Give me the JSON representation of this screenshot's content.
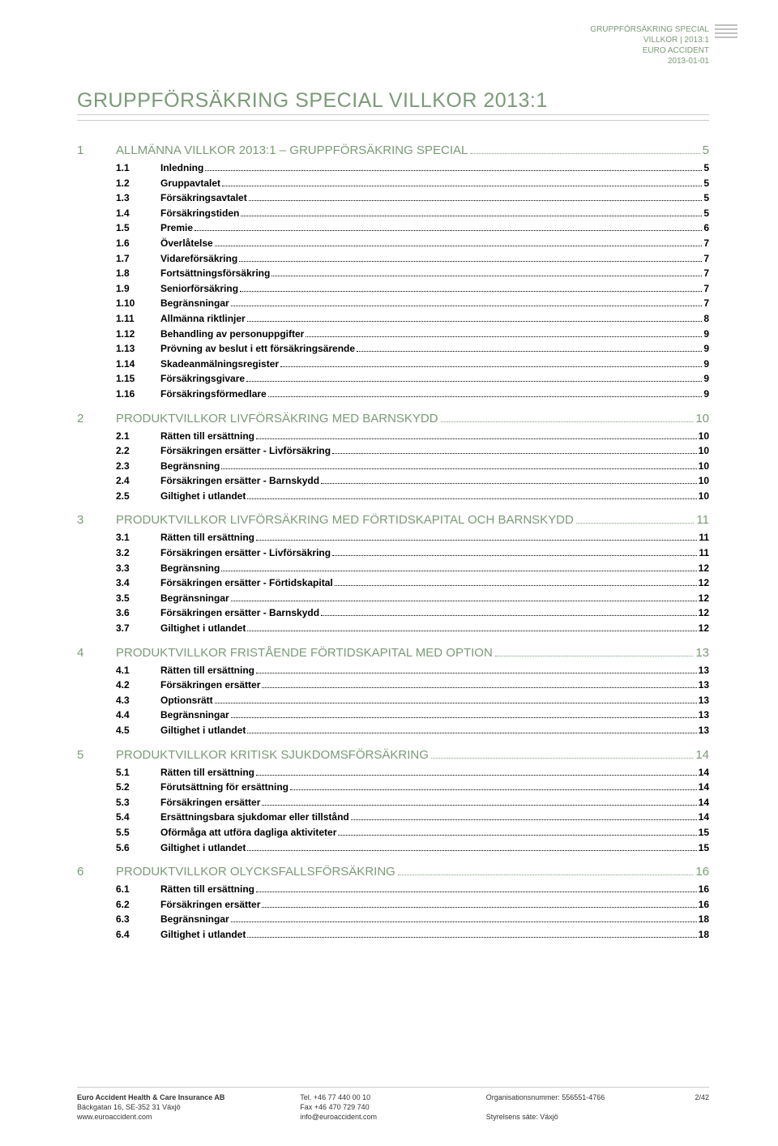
{
  "header": {
    "line1": "GRUPPFÖRSÄKRING SPECIAL",
    "line2": "VILLKOR | 2013:1",
    "line3": "EURO ACCIDENT",
    "line4": "2013-01-01"
  },
  "main_title": "GRUPPFÖRSÄKRING SPECIAL VILLKOR 2013:1",
  "toc": [
    {
      "num": "1",
      "title": "ALLMÄNNA VILLKOR 2013:1 – GRUPPFÖRSÄKRING SPECIAL",
      "page": "5",
      "subs": [
        {
          "num": "1.1",
          "title": "Inledning",
          "page": "5"
        },
        {
          "num": "1.2",
          "title": "Gruppavtalet",
          "page": "5"
        },
        {
          "num": "1.3",
          "title": "Försäkringsavtalet",
          "page": "5"
        },
        {
          "num": "1.4",
          "title": "Försäkringstiden",
          "page": "5"
        },
        {
          "num": "1.5",
          "title": "Premie",
          "page": "6"
        },
        {
          "num": "1.6",
          "title": "Överlåtelse",
          "page": "7"
        },
        {
          "num": "1.7",
          "title": "Vidareförsäkring",
          "page": "7"
        },
        {
          "num": "1.8",
          "title": "Fortsättningsförsäkring",
          "page": "7"
        },
        {
          "num": "1.9",
          "title": "Seniorförsäkring",
          "page": "7"
        },
        {
          "num": "1.10",
          "title": "Begränsningar",
          "page": "7"
        },
        {
          "num": "1.11",
          "title": "Allmänna riktlinjer",
          "page": "8"
        },
        {
          "num": "1.12",
          "title": "Behandling av personuppgifter",
          "page": "9"
        },
        {
          "num": "1.13",
          "title": "Prövning av beslut i ett försäkringsärende",
          "page": "9"
        },
        {
          "num": "1.14",
          "title": "Skadeanmälningsregister",
          "page": "9"
        },
        {
          "num": "1.15",
          "title": "Försäkringsgivare",
          "page": "9"
        },
        {
          "num": "1.16",
          "title": "Försäkringsförmedlare",
          "page": "9"
        }
      ]
    },
    {
      "num": "2",
      "title": "PRODUKTVILLKOR LIVFÖRSÄKRING MED BARNSKYDD",
      "page": "10",
      "subs": [
        {
          "num": "2.1",
          "title": "Rätten till ersättning",
          "page": "10"
        },
        {
          "num": "2.2",
          "title": "Försäkringen ersätter - Livförsäkring",
          "page": "10"
        },
        {
          "num": "2.3",
          "title": "Begränsning",
          "page": "10"
        },
        {
          "num": "2.4",
          "title": "Försäkringen ersätter - Barnskydd",
          "page": "10"
        },
        {
          "num": "2.5",
          "title": "Giltighet i utlandet",
          "page": "10"
        }
      ]
    },
    {
      "num": "3",
      "title": "PRODUKTVILLKOR LIVFÖRSÄKRING MED FÖRTIDSKAPITAL OCH BARNSKYDD",
      "page": "11",
      "subs": [
        {
          "num": "3.1",
          "title": "Rätten till ersättning",
          "page": "11"
        },
        {
          "num": "3.2",
          "title": "Försäkringen ersätter - Livförsäkring",
          "page": "11"
        },
        {
          "num": "3.3",
          "title": "Begränsning",
          "page": "12"
        },
        {
          "num": "3.4",
          "title": "Försäkringen ersätter - Förtidskapital",
          "page": "12"
        },
        {
          "num": "3.5",
          "title": "Begränsningar",
          "page": "12"
        },
        {
          "num": "3.6",
          "title": "Försäkringen ersätter - Barnskydd",
          "page": "12"
        },
        {
          "num": "3.7",
          "title": "Giltighet i utlandet",
          "page": "12"
        }
      ]
    },
    {
      "num": "4",
      "title": "PRODUKTVILLKOR FRISTÅENDE FÖRTIDSKAPITAL MED OPTION",
      "page": "13",
      "subs": [
        {
          "num": "4.1",
          "title": "Rätten till ersättning",
          "page": "13"
        },
        {
          "num": "4.2",
          "title": "Försäkringen ersätter",
          "page": "13"
        },
        {
          "num": "4.3",
          "title": "Optionsrätt",
          "page": "13"
        },
        {
          "num": "4.4",
          "title": "Begränsningar",
          "page": "13"
        },
        {
          "num": "4.5",
          "title": "Giltighet i utlandet",
          "page": "13"
        }
      ]
    },
    {
      "num": "5",
      "title": "PRODUKTVILLKOR KRITISK SJUKDOMSFÖRSÄKRING",
      "page": "14",
      "subs": [
        {
          "num": "5.1",
          "title": "Rätten till ersättning",
          "page": "14"
        },
        {
          "num": "5.2",
          "title": "Förutsättning för ersättning",
          "page": "14"
        },
        {
          "num": "5.3",
          "title": "Försäkringen ersätter",
          "page": "14"
        },
        {
          "num": "5.4",
          "title": "Ersättningsbara sjukdomar eller tillstånd",
          "page": "14"
        },
        {
          "num": "5.5",
          "title": "Oförmåga att utföra dagliga aktiviteter",
          "page": "15"
        },
        {
          "num": "5.6",
          "title": "Giltighet i utlandet",
          "page": "15"
        }
      ]
    },
    {
      "num": "6",
      "title": "PRODUKTVILLKOR OLYCKSFALLSFÖRSÄKRING",
      "page": "16",
      "subs": [
        {
          "num": "6.1",
          "title": "Rätten till ersättning",
          "page": "16"
        },
        {
          "num": "6.2",
          "title": "Försäkringen ersätter",
          "page": "16"
        },
        {
          "num": "6.3",
          "title": "Begränsningar",
          "page": "18"
        },
        {
          "num": "6.4",
          "title": "Giltighet i utlandet",
          "page": "18"
        }
      ]
    }
  ],
  "footer": {
    "company": "Euro Accident Health & Care Insurance AB",
    "address": "Bäckgatan 16, SE-352 31 Växjö",
    "web": "www.euroaccident.com",
    "tel": "Tel. +46 77 440 00 10",
    "fax": "Fax +46 470 729 740",
    "email": "info@euroaccident.com",
    "orgnr_label": "Organisationsnummer:",
    "orgnr": "556551-4766",
    "seat_label": "Styrelsens säte:",
    "seat": "Växjö",
    "page_num": "2/42"
  }
}
